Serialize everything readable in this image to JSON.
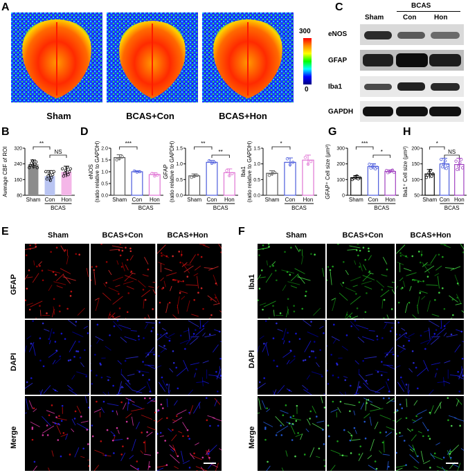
{
  "panels": {
    "A": {
      "letter": "A",
      "groups": [
        "Sham",
        "BCAS+Con",
        "BCAS+Hon"
      ],
      "colorbar": {
        "max": "300",
        "min": "0"
      }
    },
    "B": {
      "letter": "B",
      "ylabel": "Average CBF of ROI",
      "group_label": "BCAS",
      "sig_left": "**",
      "sig_right": "NS"
    },
    "C": {
      "letter": "C",
      "header_group": "BCAS",
      "lanes": [
        "Sham",
        "Con",
        "Hon"
      ],
      "proteins": [
        "eNOS",
        "GFAP",
        "Iba1",
        "GAPDH"
      ]
    },
    "D": {
      "letter": "D"
    },
    "E": {
      "letter": "E",
      "columns": [
        "Sham",
        "BCAS+Con",
        "BCAS+Hon"
      ],
      "rows": [
        "GFAP",
        "DAPI",
        "Merge"
      ]
    },
    "F": {
      "letter": "F",
      "columns": [
        "Sham",
        "BCAS+Con",
        "BCAS+Hon"
      ],
      "rows": [
        "Iba1",
        "DAPI",
        "Merge"
      ]
    },
    "G": {
      "letter": "G"
    },
    "H": {
      "letter": "H"
    }
  },
  "chart_data": [
    {
      "id": "B",
      "type": "bar",
      "categories": [
        "Sham",
        "Con",
        "Hon"
      ],
      "values": [
        238,
        178,
        200
      ],
      "errors": [
        22,
        28,
        28
      ],
      "colors": [
        "#8c8c8c",
        "#b9c4f2",
        "#f4b6e8"
      ],
      "ylabel": "Average CBF of ROI",
      "ylim": [
        80,
        320
      ],
      "yticks": [
        80,
        160,
        240,
        320
      ],
      "group": "BCAS",
      "group_span": [
        1,
        2
      ],
      "significance": [
        {
          "from": 0,
          "to": 1,
          "label": "**"
        },
        {
          "from": 1,
          "to": 2,
          "label": "NS"
        }
      ]
    },
    {
      "id": "D1",
      "type": "bar",
      "categories": [
        "Sham",
        "Con",
        "Hon"
      ],
      "values": [
        1.6,
        1.0,
        0.88
      ],
      "errors": [
        0.12,
        0.04,
        0.08
      ],
      "colors": [
        "#555555",
        "#4c5cdc",
        "#e074d4"
      ],
      "ylabel": "eNOS",
      "ylabel2": "(ratio relative to GAPDH)",
      "ylim": [
        0,
        2.0
      ],
      "yticks": [
        0.0,
        0.5,
        1.0,
        1.5,
        2.0
      ],
      "group": "BCAS",
      "group_span": [
        1,
        2
      ],
      "significance": [
        {
          "from": 0,
          "to": 1,
          "label": "***"
        }
      ]
    },
    {
      "id": "D2",
      "type": "bar",
      "categories": [
        "Sham",
        "Con",
        "Hon"
      ],
      "values": [
        0.62,
        1.05,
        0.72
      ],
      "errors": [
        0.06,
        0.06,
        0.12
      ],
      "colors": [
        "#555555",
        "#4c5cdc",
        "#e074d4"
      ],
      "ylabel": "GFAP",
      "ylabel2": "(ratio relative to GAPDH)",
      "ylim": [
        0,
        1.5
      ],
      "yticks": [
        0.0,
        0.5,
        1.0,
        1.5
      ],
      "group": "BCAS",
      "group_span": [
        1,
        2
      ],
      "significance": [
        {
          "from": 0,
          "to": 1,
          "label": "**"
        },
        {
          "from": 1,
          "to": 2,
          "label": "**"
        }
      ]
    },
    {
      "id": "D3",
      "type": "bar",
      "categories": [
        "Sham",
        "Con",
        "Hon"
      ],
      "values": [
        0.7,
        1.05,
        1.12
      ],
      "errors": [
        0.08,
        0.14,
        0.16
      ],
      "colors": [
        "#555555",
        "#4c5cdc",
        "#e074d4"
      ],
      "ylabel": "Iba1",
      "ylabel2": "(ratio relative to GAPDH)",
      "ylim": [
        0,
        1.5
      ],
      "yticks": [
        0.0,
        0.5,
        1.0,
        1.5
      ],
      "group": "BCAS",
      "group_span": [
        1,
        2
      ],
      "significance": [
        {
          "from": 0,
          "to": 1,
          "label": "*"
        }
      ]
    },
    {
      "id": "G",
      "type": "bar",
      "categories": [
        "Sham",
        "Con",
        "Hon"
      ],
      "values": [
        112,
        183,
        152
      ],
      "errors": [
        14,
        18,
        10
      ],
      "colors": [
        "#000000",
        "#4c5cdc",
        "#a040c0"
      ],
      "ylabel": "GFAP⁺ Cell size (μm²)",
      "ylim": [
        0,
        300
      ],
      "yticks": [
        0,
        100,
        200,
        300
      ],
      "group": "BCAS",
      "group_span": [
        1,
        2
      ],
      "significance": [
        {
          "from": 0,
          "to": 1,
          "label": "***"
        },
        {
          "from": 1,
          "to": 2,
          "label": "*"
        }
      ]
    },
    {
      "id": "H",
      "type": "bar",
      "categories": [
        "Sham",
        "Con",
        "Hon"
      ],
      "values": [
        118,
        150,
        148
      ],
      "errors": [
        14,
        18,
        20
      ],
      "colors": [
        "#000000",
        "#4c5cdc",
        "#a040c0"
      ],
      "ylabel": "Iba1⁺ Cell size (μm²)",
      "ylim": [
        50,
        200
      ],
      "yticks": [
        50,
        100,
        150,
        200
      ],
      "group": "BCAS",
      "group_span": [
        1,
        2
      ],
      "significance": [
        {
          "from": 0,
          "to": 1,
          "label": "*"
        },
        {
          "from": 1,
          "to": 2,
          "label": "NS"
        }
      ]
    }
  ]
}
